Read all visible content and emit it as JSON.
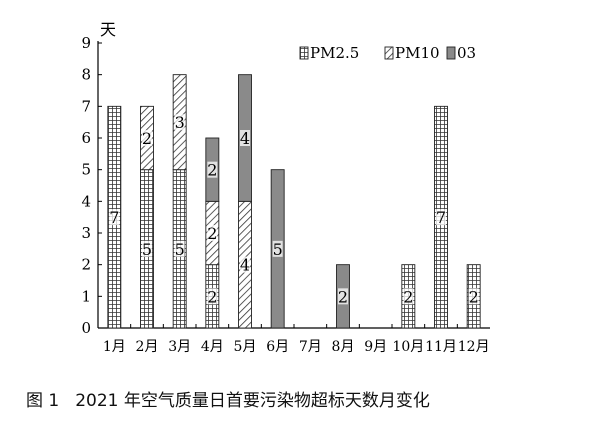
{
  "caption": {
    "figure_label": "图 1",
    "title": "2021 年空气质量日首要污染物超标天数月变化"
  },
  "chart_data": {
    "type": "bar",
    "stacked": true,
    "title": "",
    "ylabel": "天",
    "xlabel": "",
    "ylim": [
      0,
      9
    ],
    "yticks": [
      "0",
      "1",
      "2",
      "3",
      "4",
      "5",
      "6",
      "7",
      "8",
      "9"
    ],
    "grid": false,
    "legend_position": "top-right",
    "categories": [
      "1月",
      "2月",
      "3月",
      "4月",
      "5月",
      "6月",
      "7月",
      "8月",
      "9月",
      "10月",
      "11月",
      "12月"
    ],
    "series": [
      {
        "name": "PM2.5",
        "pattern": "grid",
        "values": [
          7,
          5,
          5,
          2,
          0,
          0,
          0,
          0,
          0,
          2,
          7,
          2
        ]
      },
      {
        "name": "PM10",
        "pattern": "hatch",
        "values": [
          0,
          2,
          3,
          2,
          4,
          0,
          0,
          0,
          0,
          0,
          0,
          0
        ]
      },
      {
        "name": "03",
        "pattern": "solid",
        "color": "#8a8a8a",
        "values": [
          0,
          0,
          0,
          2,
          4,
          5,
          0,
          2,
          0,
          0,
          0,
          0
        ]
      }
    ]
  }
}
